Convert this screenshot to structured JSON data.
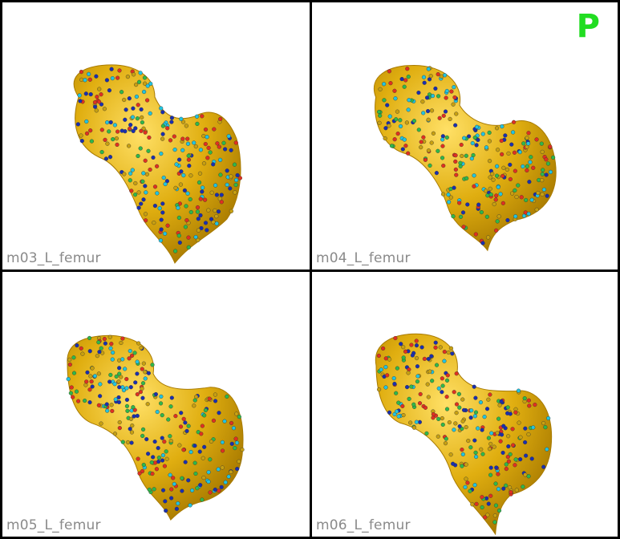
{
  "view_indicator": "P",
  "panes": [
    {
      "label": "m03_L_femur"
    },
    {
      "label": "m04_L_femur"
    },
    {
      "label": "m05_L_femur"
    },
    {
      "label": "m06_L_femur"
    }
  ],
  "colors": {
    "bone": "#e0ae10",
    "bone_highlight": "#ffe066",
    "bone_shadow": "#a87a00",
    "landmark_colors": [
      "#22c4e0",
      "#2fb84a",
      "#e03020",
      "#1a2fb0",
      "#c8a010"
    ],
    "indicator": "#22dd22"
  }
}
